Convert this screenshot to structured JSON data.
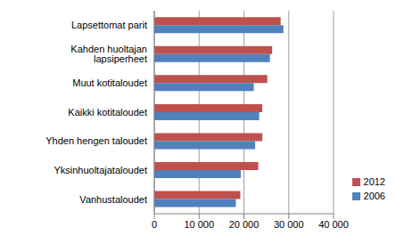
{
  "chart_data": {
    "type": "bar",
    "orientation": "horizontal",
    "categories": [
      "Lapsettomat parit",
      "Kahden huoltajan lapsiperheet",
      "Muut kotitaloudet",
      "Kaikki kotitaloudet",
      "Yhden hengen taloudet",
      "Yksinhuoltajataloudet",
      "Vanhustaloudet"
    ],
    "series": [
      {
        "name": "2012",
        "color": "#c0504d",
        "values": [
          28200,
          26300,
          25200,
          24100,
          24100,
          23200,
          19200
        ]
      },
      {
        "name": "2006",
        "color": "#4f81bd",
        "values": [
          28800,
          25800,
          22200,
          23400,
          22500,
          19300,
          18200
        ]
      }
    ],
    "xlim": [
      0,
      40000
    ],
    "xticks": [
      0,
      {
        "value": 10000,
        "label": "10 000"
      },
      {
        "value": 20000,
        "label": "20 000"
      },
      {
        "value": 30000,
        "label": "30 000"
      },
      {
        "value": 40000,
        "label": "40 000"
      }
    ],
    "grid": true,
    "legend": "lower right"
  }
}
